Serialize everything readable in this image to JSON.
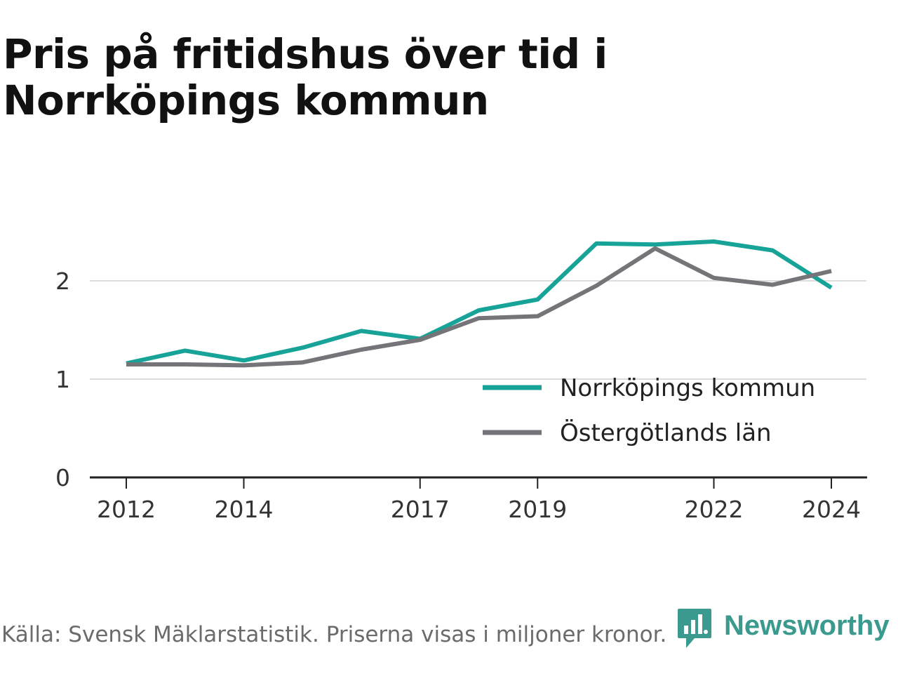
{
  "title": "Pris på fritidshus över tid i Norrköpings kommun",
  "source": "Källa: Svensk Mäklarstatistik. Priserna visas i miljoner kronor.",
  "brand": {
    "name": "Newsworthy",
    "icon": "newsworthy-logo-icon",
    "color": "#3a9a8e"
  },
  "chart_data": {
    "type": "line",
    "title": "Pris på fritidshus över tid i Norrköpings kommun",
    "xlabel": "",
    "ylabel": "",
    "x": [
      2012,
      2013,
      2014,
      2015,
      2016,
      2017,
      2018,
      2019,
      2020,
      2021,
      2022,
      2023,
      2024
    ],
    "x_ticks": [
      "2012",
      "2014",
      "2017",
      "2019",
      "2022",
      "2024"
    ],
    "y_ticks": [
      "0",
      "1",
      "2"
    ],
    "ylim": [
      0,
      2.5
    ],
    "grid": true,
    "legend_position": "bottom-right",
    "series": [
      {
        "name": "Norrköpings kommun",
        "color": "#17a398",
        "values": [
          1.16,
          1.29,
          1.19,
          1.32,
          1.49,
          1.41,
          1.7,
          1.81,
          2.38,
          2.37,
          2.4,
          2.31,
          1.93
        ]
      },
      {
        "name": "Östergötlands län",
        "color": "#757579",
        "values": [
          1.15,
          1.15,
          1.14,
          1.17,
          1.3,
          1.4,
          1.62,
          1.64,
          1.95,
          2.33,
          2.03,
          1.96,
          2.1
        ]
      }
    ]
  }
}
